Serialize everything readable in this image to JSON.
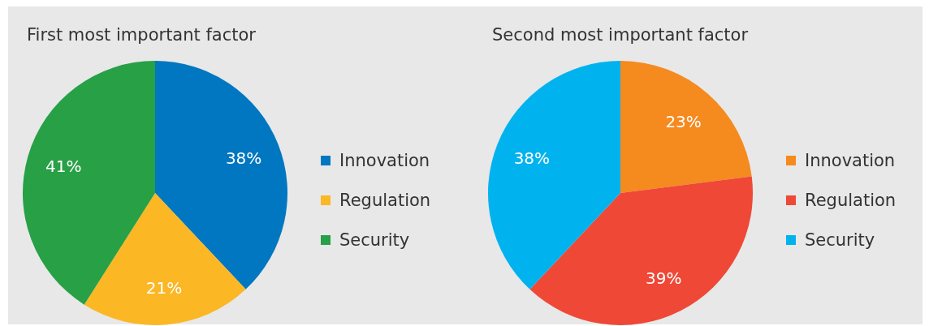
{
  "chart_data": [
    {
      "type": "pie",
      "title": "First most important factor",
      "categories": [
        "Innovation",
        "Regulation",
        "Security"
      ],
      "values": [
        38,
        21,
        41
      ],
      "colors": [
        "#0077c0",
        "#fbb724",
        "#27a046"
      ],
      "value_labels": [
        "38%",
        "21%",
        "41%"
      ],
      "legend": "right"
    },
    {
      "type": "pie",
      "title": "Second most important factor",
      "categories": [
        "Innovation",
        "Regulation",
        "Security"
      ],
      "values": [
        23,
        39,
        38
      ],
      "colors": [
        "#f58a1f",
        "#ef4836",
        "#00b3ef"
      ],
      "value_labels": [
        "23%",
        "39%",
        "38%"
      ],
      "legend": "right"
    }
  ]
}
